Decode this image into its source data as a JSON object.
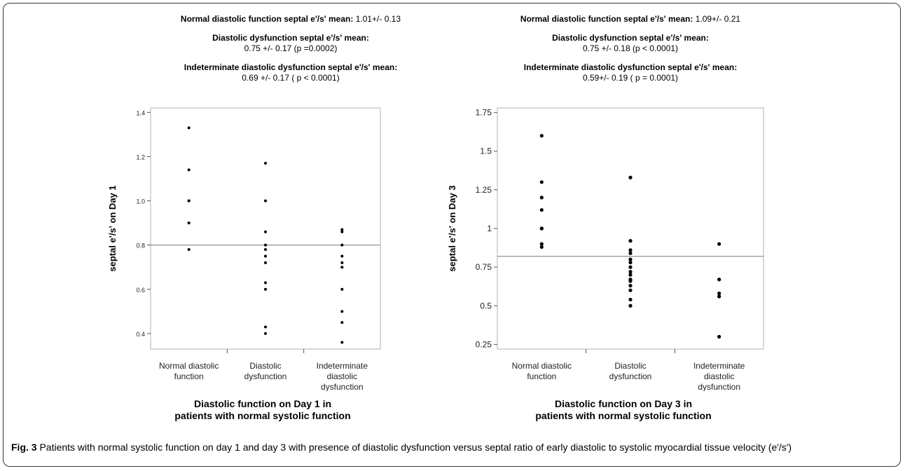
{
  "figure": {
    "caption_label": "Fig. 3",
    "caption_text": "Patients with normal systolic function on day 1 and day 3 with presence of diastolic dysfunction versus septal ratio of early diastolic to systolic myocardial tissue velocity (e′/s′)"
  },
  "panels": [
    {
      "stats": [
        {
          "label": "Normal diastolic function septal e'/s' mean:",
          "value": "1.01+/- 0.13",
          "inline": true
        },
        {
          "label": "Diastolic dysfunction septal e'/s' mean:",
          "value": "0.75 +/- 0.17 (p =0.0002)",
          "inline": false
        },
        {
          "label": "Indeterminate diastolic dysfunction septal e'/s' mean:",
          "value": "0.69 +/- 0.17 ( p < 0.0001)",
          "inline": false
        }
      ],
      "xtitle_line1": "Diastolic function on Day 1 in",
      "xtitle_line2": "patients with normal systolic function"
    },
    {
      "stats": [
        {
          "label": "Normal diastolic function septal e'/s' mean:",
          "value": "1.09+/- 0.21",
          "inline": true
        },
        {
          "label": "Diastolic dysfunction septal e'/s' mean:",
          "value": "0.75 +/- 0.18 (p < 0.0001)",
          "inline": false
        },
        {
          "label": "Indeterminate diastolic dysfunction septal  e'/s' mean:",
          "value": "0.59+/- 0.19 ( p = 0.0001)",
          "inline": false
        }
      ],
      "xtitle_line1": "Diastolic function on Day 3 in",
      "xtitle_line2": "patients with normal systolic function"
    }
  ],
  "chart_data": [
    {
      "type": "scatter",
      "ylabel": "septal e'/s' on Day 1",
      "categories": [
        "Normal diastolic function",
        "Diastolic dysfunction",
        "Indeterminate diastolic dysfunction"
      ],
      "category_labels": [
        [
          "Normal diastolic",
          "function"
        ],
        [
          "Diastolic",
          "dysfunction"
        ],
        [
          "Indeterminate",
          "diastolic",
          "dysfunction"
        ]
      ],
      "ylim": [
        0.33,
        1.42
      ],
      "yticks": [
        "0.4",
        "0.6",
        "0.8",
        "1.0",
        "1.2",
        "1.4"
      ],
      "ytick_values": [
        0.4,
        0.6,
        0.8,
        1.0,
        1.2,
        1.4
      ],
      "reference_line": 0.8,
      "grid": false,
      "points": [
        [
          1.33,
          1.14,
          1.0,
          1.0,
          0.9,
          0.78
        ],
        [
          1.17,
          1.0,
          0.86,
          0.8,
          0.78,
          0.75,
          0.72,
          0.63,
          0.6,
          0.43,
          0.4
        ],
        [
          0.87,
          0.86,
          0.8,
          0.75,
          0.72,
          0.7,
          0.6,
          0.5,
          0.45,
          0.36
        ]
      ]
    },
    {
      "type": "scatter",
      "ylabel": "septal e'/s' on Day 3",
      "categories": [
        "Normal diastolic function",
        "Diastolic dysfunction",
        "Indeterminate diastolic dysfunction"
      ],
      "category_labels": [
        [
          "Normal diastolic",
          "function"
        ],
        [
          "Diastolic",
          "dysfunction"
        ],
        [
          "Indeterminate",
          "diastolic",
          "dysfunction"
        ]
      ],
      "ylim": [
        0.22,
        1.78
      ],
      "yticks": [
        "0.25",
        "0.5",
        "0.75",
        "1",
        "1.25",
        "1.5",
        "1.75"
      ],
      "ytick_values": [
        0.25,
        0.5,
        0.75,
        1.0,
        1.25,
        1.5,
        1.75
      ],
      "reference_line": 0.82,
      "grid": false,
      "points": [
        [
          1.6,
          1.3,
          1.2,
          1.12,
          1.0,
          1.0,
          0.9,
          0.88
        ],
        [
          1.33,
          0.92,
          0.86,
          0.84,
          0.8,
          0.78,
          0.75,
          0.72,
          0.7,
          0.67,
          0.66,
          0.63,
          0.6,
          0.54,
          0.5
        ],
        [
          0.9,
          0.67,
          0.58,
          0.56,
          0.3
        ]
      ]
    }
  ]
}
